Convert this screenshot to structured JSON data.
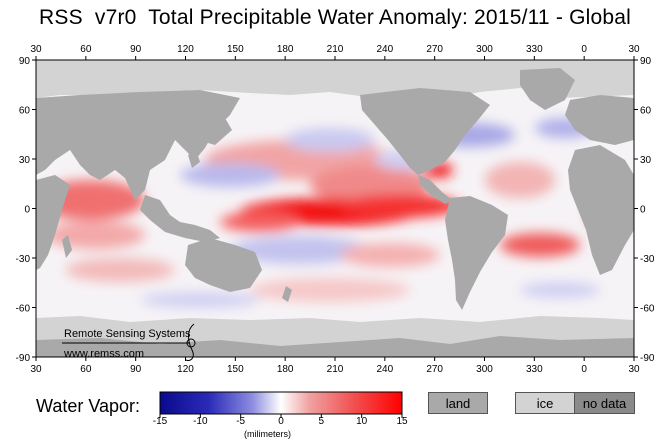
{
  "title": "RSS  v7r0  Total Precipitable Water Anomaly: 2015/11 - Global",
  "lon_ticks": [
    "30",
    "60",
    "90",
    "120",
    "150",
    "180",
    "210",
    "240",
    "270",
    "300",
    "330",
    "0",
    "30"
  ],
  "lat_ticks": [
    "90",
    "60",
    "30",
    "0",
    "-30",
    "-60",
    "-90"
  ],
  "credit": {
    "org": "Remote Sensing Systems",
    "url": "www.remss.com"
  },
  "legend": {
    "label": "Water Vapor:",
    "ticks": [
      "-15",
      "-10",
      "-5",
      "0",
      "5",
      "10",
      "15"
    ],
    "units": "(milimeters)",
    "land": "land",
    "ice": "ice",
    "no_data": "no data"
  },
  "colors": {
    "ocean_low": "#0a0a8c",
    "ocean_zero": "#ffffff",
    "ocean_high": "#ff0000",
    "land": "#a9a9a9",
    "ice": "#d3d3d3",
    "no_data": "#8a8a8a"
  }
}
